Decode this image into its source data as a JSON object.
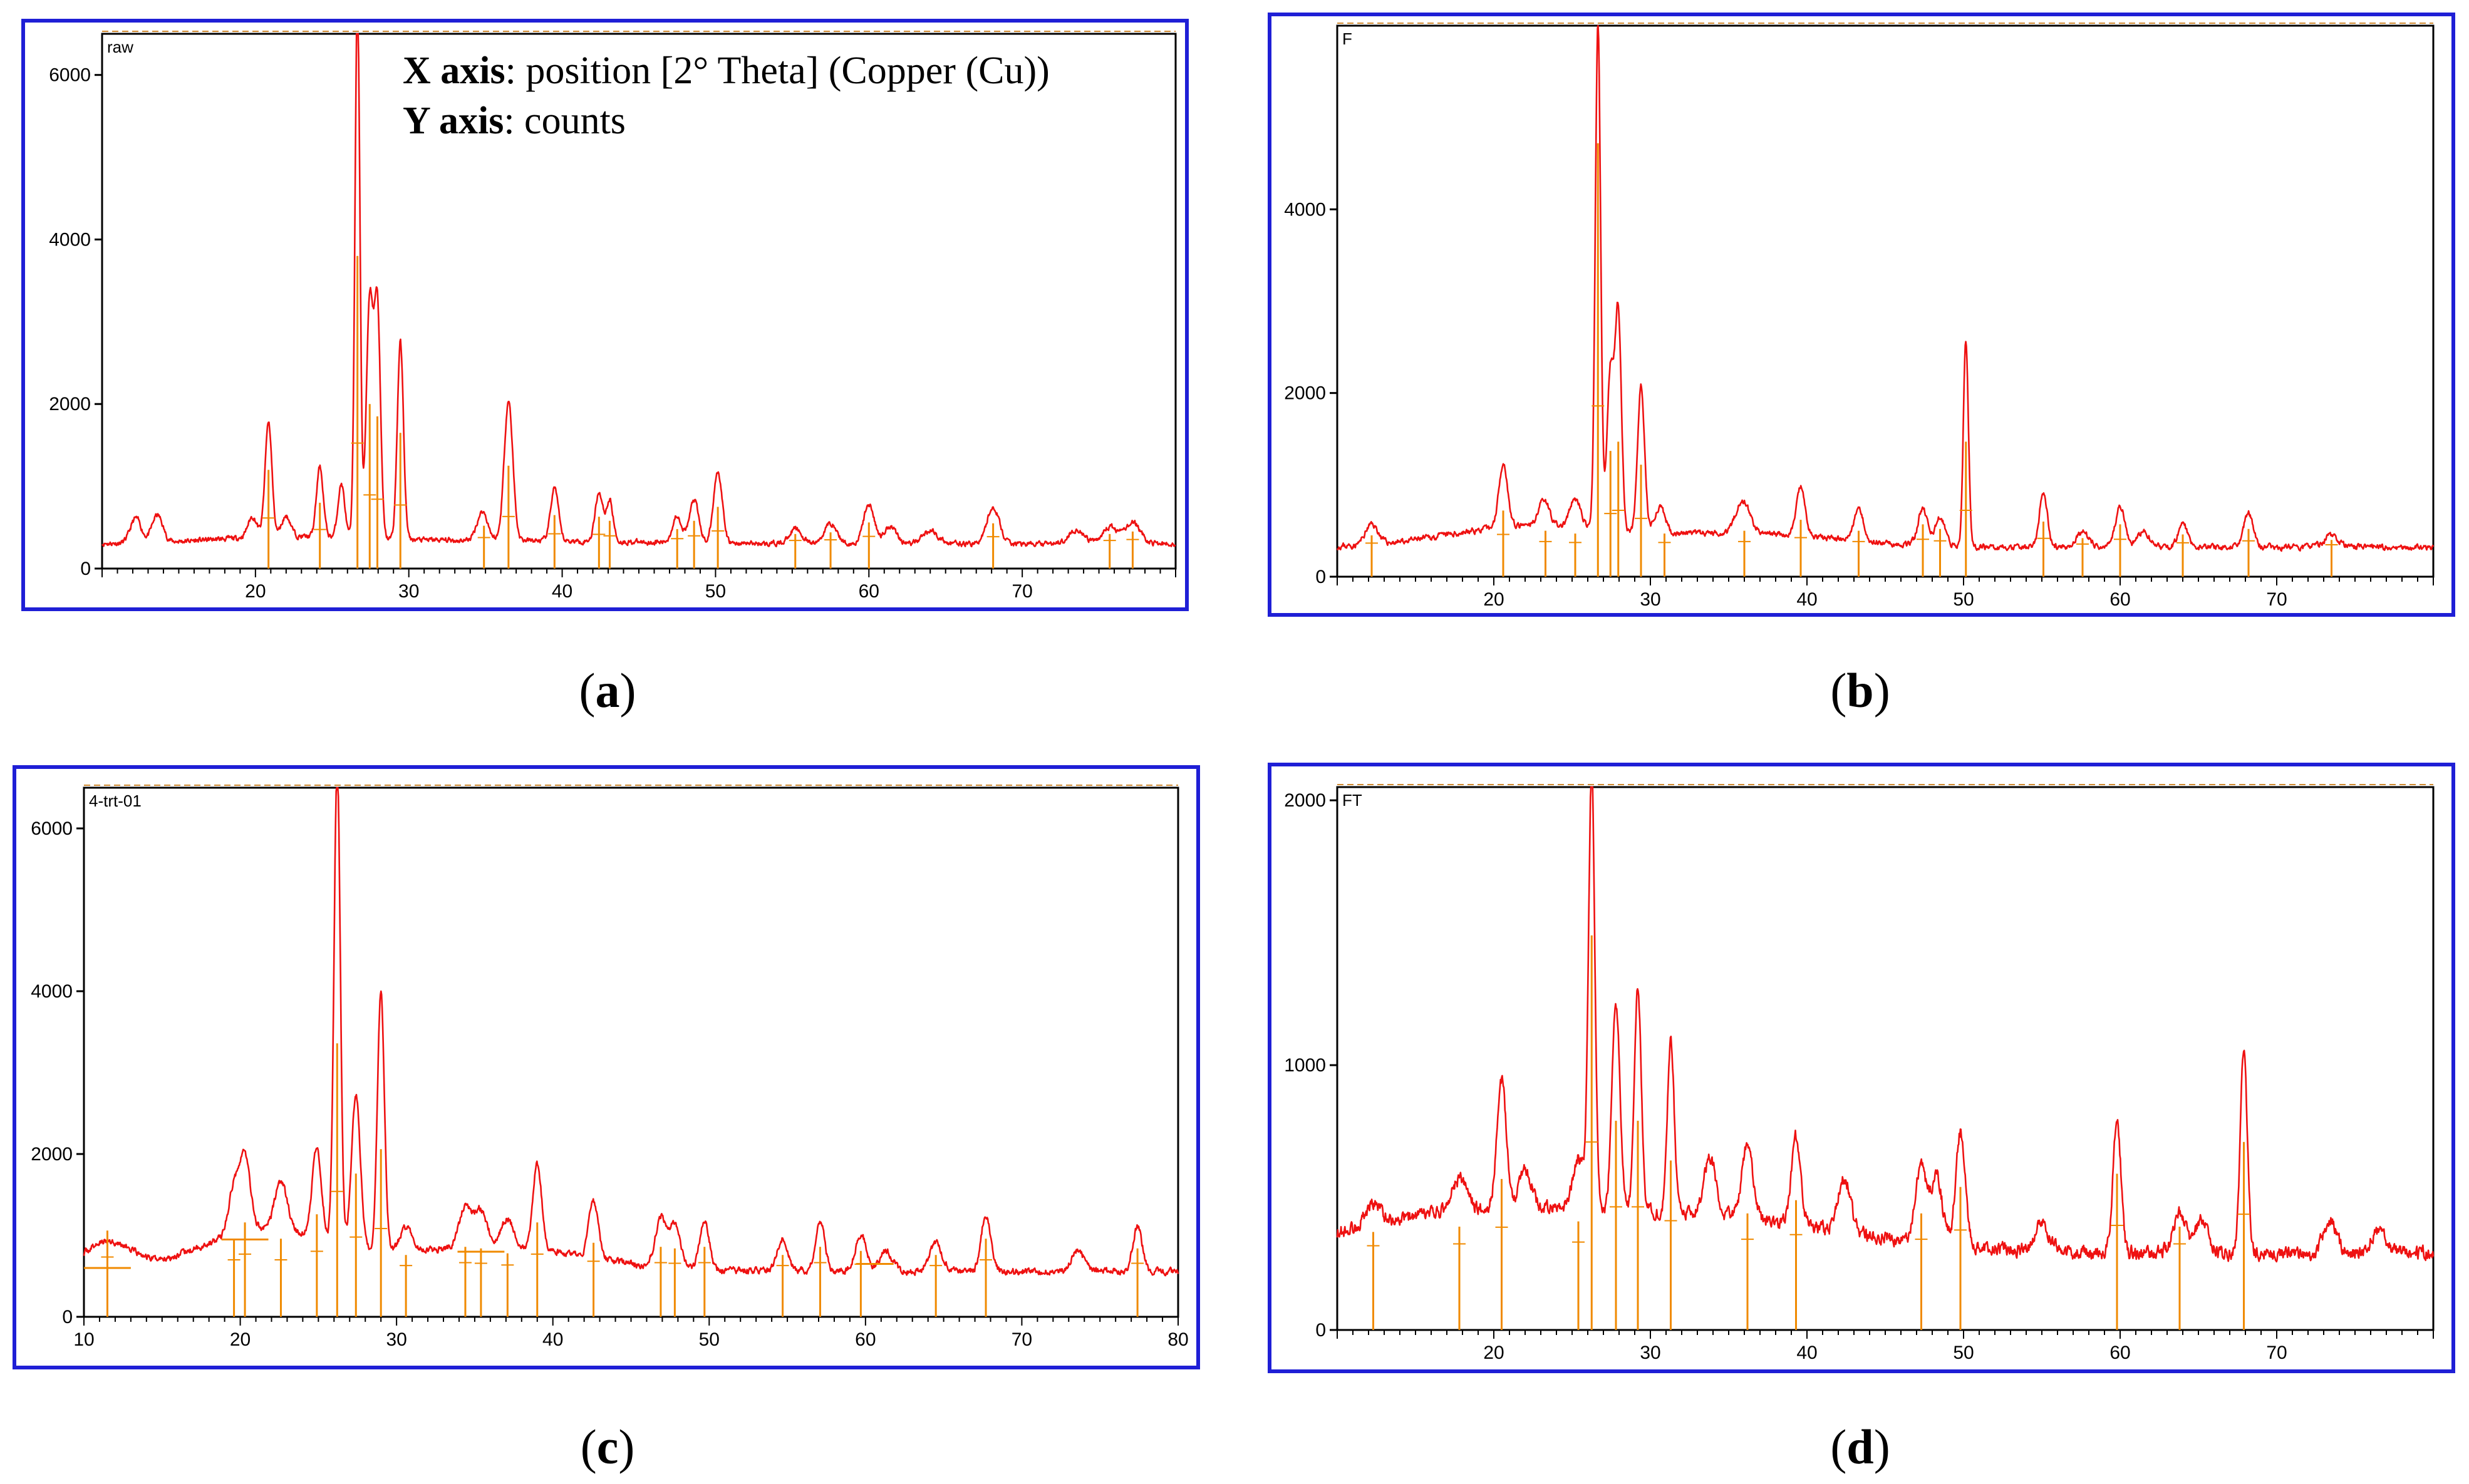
{
  "annotation": {
    "x_label_bold": "X axis",
    "x_label_text": ": position  [2° Theta] (Copper (Cu))",
    "y_label_bold": "Y axis",
    "y_label_text": ": counts"
  },
  "captions": [
    "a",
    "b",
    "c",
    "d"
  ],
  "colors": {
    "frame": "#1f1fd6",
    "trace": "#ee1111",
    "stick": "#f08a00"
  },
  "chart_data": [
    {
      "id": "a",
      "type": "line",
      "title": "raw",
      "xlim": [
        10,
        80
      ],
      "ylim": [
        0,
        6500
      ],
      "xticks": [
        20,
        30,
        40,
        50,
        60,
        70
      ],
      "yticks": [
        0,
        2000,
        4000,
        6000
      ],
      "xlabel": "position [°2Theta] (Copper (Cu))",
      "ylabel": "counts",
      "baseline": 300,
      "noise": 55,
      "seed": 11,
      "broad": [
        [
          22,
          5,
          80
        ],
        [
          36,
          8,
          40
        ]
      ],
      "peaks": [
        [
          12.2,
          300,
          0.35
        ],
        [
          13.6,
          330,
          0.35
        ],
        [
          19.8,
          250,
          0.3
        ],
        [
          20.85,
          1400,
          0.22
        ],
        [
          22.0,
          250,
          0.3
        ],
        [
          24.2,
          850,
          0.22
        ],
        [
          25.6,
          650,
          0.22
        ],
        [
          26.65,
          6600,
          0.16
        ],
        [
          27.45,
          2900,
          0.22
        ],
        [
          27.95,
          2800,
          0.2
        ],
        [
          29.45,
          2400,
          0.2
        ],
        [
          34.8,
          350,
          0.35
        ],
        [
          36.5,
          1700,
          0.28
        ],
        [
          39.5,
          650,
          0.25
        ],
        [
          42.4,
          600,
          0.25
        ],
        [
          43.1,
          500,
          0.22
        ],
        [
          47.5,
          330,
          0.3
        ],
        [
          48.6,
          520,
          0.3
        ],
        [
          50.15,
          880,
          0.28
        ],
        [
          55.2,
          180,
          0.4
        ],
        [
          57.5,
          250,
          0.4
        ],
        [
          60.0,
          480,
          0.35
        ],
        [
          61.4,
          220,
          0.4
        ],
        [
          64.0,
          160,
          0.5
        ],
        [
          68.1,
          450,
          0.4
        ],
        [
          73.5,
          170,
          0.5
        ],
        [
          75.7,
          200,
          0.5
        ],
        [
          77.2,
          260,
          0.5
        ]
      ],
      "sticks": [
        [
          20.85,
          900
        ],
        [
          24.2,
          500
        ],
        [
          26.65,
          3500
        ],
        [
          27.45,
          1700
        ],
        [
          27.95,
          1550
        ],
        [
          29.45,
          1350
        ],
        [
          34.9,
          220
        ],
        [
          36.5,
          950
        ],
        [
          39.5,
          350
        ],
        [
          42.4,
          330
        ],
        [
          43.1,
          280
        ],
        [
          47.5,
          180
        ],
        [
          48.6,
          280
        ],
        [
          50.15,
          450
        ],
        [
          55.2,
          120
        ],
        [
          57.5,
          140
        ],
        [
          60.0,
          260
        ],
        [
          68.1,
          250
        ],
        [
          75.7,
          120
        ],
        [
          77.2,
          150
        ]
      ]
    },
    {
      "id": "b",
      "type": "line",
      "title": "F",
      "xlim": [
        10,
        80
      ],
      "ylim": [
        0,
        6000
      ],
      "xticks": [
        20,
        30,
        40,
        50,
        60,
        70
      ],
      "yticks": [
        0,
        2000,
        4000
      ],
      "xlabel": "position [°2Theta] (Copper (Cu))",
      "ylabel": "counts",
      "baseline": 320,
      "noise": 55,
      "seed": 23,
      "broad": [
        [
          22,
          5,
          220
        ],
        [
          36,
          6,
          150
        ]
      ],
      "peaks": [
        [
          12.2,
          220,
          0.4
        ],
        [
          20.6,
          700,
          0.28
        ],
        [
          23.2,
          300,
          0.35
        ],
        [
          25.2,
          320,
          0.35
        ],
        [
          26.65,
          5500,
          0.17
        ],
        [
          27.45,
          1750,
          0.22
        ],
        [
          27.95,
          2350,
          0.2
        ],
        [
          29.4,
          1600,
          0.22
        ],
        [
          30.6,
          280,
          0.35
        ],
        [
          35.9,
          350,
          0.45
        ],
        [
          39.6,
          520,
          0.28
        ],
        [
          43.3,
          360,
          0.3
        ],
        [
          47.4,
          400,
          0.3
        ],
        [
          48.5,
          320,
          0.3
        ],
        [
          50.15,
          2250,
          0.16
        ],
        [
          55.1,
          600,
          0.25
        ],
        [
          57.6,
          160,
          0.4
        ],
        [
          60.0,
          450,
          0.3
        ],
        [
          61.5,
          170,
          0.4
        ],
        [
          64.0,
          260,
          0.3
        ],
        [
          68.2,
          380,
          0.3
        ],
        [
          73.5,
          120,
          0.5
        ]
      ],
      "sticks": [
        [
          12.2,
          130
        ],
        [
          20.6,
          400
        ],
        [
          23.3,
          180
        ],
        [
          25.2,
          150
        ],
        [
          26.65,
          4400
        ],
        [
          27.45,
          1050
        ],
        [
          27.95,
          1150
        ],
        [
          29.4,
          900
        ],
        [
          30.9,
          150
        ],
        [
          36.0,
          180
        ],
        [
          39.6,
          300
        ],
        [
          43.3,
          180
        ],
        [
          47.4,
          250
        ],
        [
          48.5,
          200
        ],
        [
          50.15,
          1150
        ],
        [
          55.1,
          280
        ],
        [
          57.6,
          100
        ],
        [
          60.0,
          250
        ],
        [
          64.0,
          140
        ],
        [
          68.2,
          200
        ],
        [
          73.5,
          80
        ]
      ]
    },
    {
      "id": "c",
      "type": "line",
      "title": "4-trt-01",
      "xlim": [
        10,
        80
      ],
      "ylim": [
        0,
        6500
      ],
      "xticks": [
        10,
        20,
        30,
        40,
        50,
        60,
        70,
        80
      ],
      "yticks": [
        0,
        2000,
        4000,
        6000
      ],
      "xlabel": "position [°2Theta] (Copper (Cu))",
      "ylabel": "counts",
      "baseline": 560,
      "noise": 70,
      "seed": 37,
      "broad": [
        [
          11.5,
          1.5,
          350
        ],
        [
          21.5,
          4,
          500
        ],
        [
          36,
          6,
          300
        ]
      ],
      "peaks": [
        [
          19.6,
          550,
          0.35
        ],
        [
          20.3,
          900,
          0.35
        ],
        [
          22.6,
          600,
          0.4
        ],
        [
          24.9,
          1100,
          0.3
        ],
        [
          26.2,
          5900,
          0.2
        ],
        [
          27.4,
          1900,
          0.28
        ],
        [
          29.0,
          3200,
          0.22
        ],
        [
          30.6,
          300,
          0.4
        ],
        [
          34.4,
          500,
          0.4
        ],
        [
          35.4,
          450,
          0.4
        ],
        [
          37.1,
          350,
          0.4
        ],
        [
          39.0,
          1050,
          0.28
        ],
        [
          42.6,
          700,
          0.3
        ],
        [
          46.9,
          600,
          0.35
        ],
        [
          47.8,
          500,
          0.35
        ],
        [
          49.7,
          600,
          0.3
        ],
        [
          54.7,
          400,
          0.35
        ],
        [
          57.1,
          600,
          0.3
        ],
        [
          59.7,
          450,
          0.35
        ],
        [
          61.3,
          250,
          0.4
        ],
        [
          64.5,
          350,
          0.4
        ],
        [
          67.7,
          700,
          0.3
        ],
        [
          73.6,
          250,
          0.4
        ],
        [
          77.4,
          550,
          0.3
        ]
      ],
      "sticks": [
        [
          11.5,
          500
        ],
        [
          19.6,
          400
        ],
        [
          20.3,
          600
        ],
        [
          22.6,
          400
        ],
        [
          24.9,
          700
        ],
        [
          26.2,
          2800
        ],
        [
          27.4,
          1200
        ],
        [
          29.0,
          1500
        ],
        [
          30.6,
          200
        ],
        [
          34.4,
          300
        ],
        [
          35.4,
          280
        ],
        [
          37.1,
          220
        ],
        [
          39.0,
          600
        ],
        [
          42.6,
          350
        ],
        [
          46.9,
          300
        ],
        [
          47.8,
          280
        ],
        [
          49.7,
          300
        ],
        [
          54.7,
          200
        ],
        [
          57.1,
          300
        ],
        [
          59.7,
          250
        ],
        [
          64.5,
          200
        ],
        [
          67.7,
          400
        ],
        [
          77.4,
          280
        ]
      ],
      "bars": [
        [
          11.5,
          600,
          1.5
        ],
        [
          20.3,
          950,
          1.5
        ],
        [
          35.4,
          800,
          1.5
        ],
        [
          60.6,
          650,
          1.2
        ]
      ]
    },
    {
      "id": "d",
      "type": "line",
      "title": "FT",
      "xlim": [
        10,
        80
      ],
      "ylim": [
        0,
        2050
      ],
      "xticks": [
        20,
        30,
        40,
        50,
        60,
        70
      ],
      "yticks": [
        0,
        1000,
        2000
      ],
      "xlabel": "position [°2Theta] (Copper (Cu))",
      "ylabel": "counts",
      "baseline": 290,
      "noise": 45,
      "seed": 53,
      "broad": [
        [
          17,
          7,
          110
        ],
        [
          32,
          10,
          140
        ]
      ],
      "peaks": [
        [
          12.3,
          80,
          0.5
        ],
        [
          17.8,
          120,
          0.5
        ],
        [
          20.5,
          480,
          0.3
        ],
        [
          22.0,
          150,
          0.4
        ],
        [
          25.4,
          200,
          0.35
        ],
        [
          26.25,
          1650,
          0.2
        ],
        [
          27.8,
          780,
          0.25
        ],
        [
          29.2,
          850,
          0.22
        ],
        [
          31.3,
          650,
          0.22
        ],
        [
          33.8,
          220,
          0.4
        ],
        [
          36.2,
          280,
          0.35
        ],
        [
          39.3,
          330,
          0.3
        ],
        [
          42.4,
          200,
          0.4
        ],
        [
          47.3,
          280,
          0.35
        ],
        [
          48.3,
          250,
          0.35
        ],
        [
          49.8,
          430,
          0.3
        ],
        [
          55.0,
          120,
          0.4
        ],
        [
          59.8,
          500,
          0.25
        ],
        [
          63.8,
          150,
          0.4
        ],
        [
          65.2,
          130,
          0.4
        ],
        [
          67.9,
          760,
          0.22
        ],
        [
          73.4,
          130,
          0.4
        ],
        [
          76.5,
          80,
          0.5
        ]
      ],
      "sticks": [
        [
          12.3,
          80
        ],
        [
          17.8,
          100
        ],
        [
          20.5,
          280
        ],
        [
          25.4,
          120
        ],
        [
          26.25,
          1200
        ],
        [
          27.8,
          500
        ],
        [
          29.2,
          500
        ],
        [
          31.3,
          350
        ],
        [
          36.2,
          150
        ],
        [
          39.3,
          200
        ],
        [
          47.3,
          150
        ],
        [
          49.8,
          250
        ],
        [
          59.8,
          300
        ],
        [
          63.8,
          100
        ],
        [
          67.9,
          420
        ]
      ]
    }
  ]
}
